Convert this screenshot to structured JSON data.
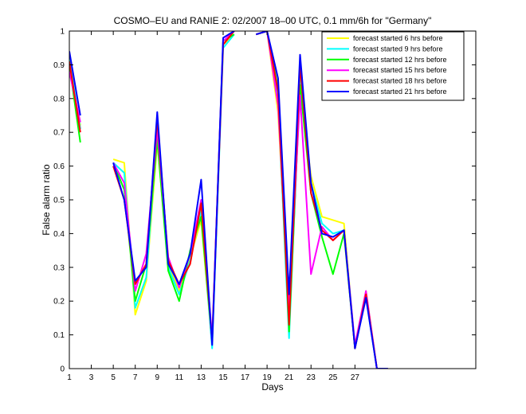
{
  "chart_data": {
    "type": "line",
    "title": "COSMO–EU and RANIE 2: 02/2007 18–00 UTC, 0.1 mm/6h for \"Germany\"",
    "xlabel": "Days",
    "ylabel": "False alarm ratio",
    "xlim": [
      1,
      38
    ],
    "ylim": [
      0,
      1
    ],
    "xticks": [
      1,
      3,
      5,
      7,
      9,
      11,
      13,
      15,
      17,
      19,
      21,
      23,
      25,
      27
    ],
    "yticks": [
      0,
      0.1,
      0.2,
      0.3,
      0.4,
      0.5,
      0.6,
      0.7,
      0.8,
      0.9,
      1
    ],
    "ytick_labels": [
      "0",
      "0.1",
      "0.2",
      "0.3",
      "0.4",
      "0.5",
      "0.6",
      "0.7",
      "0.8",
      "0.9",
      "1"
    ],
    "legend_position": "top-right",
    "grid": false,
    "x": [
      1,
      2,
      3,
      4,
      5,
      6,
      7,
      8,
      9,
      10,
      11,
      12,
      13,
      14,
      15,
      16,
      17,
      18,
      19,
      20,
      21,
      22,
      23,
      24,
      25,
      26,
      27,
      28,
      29,
      30
    ],
    "series": [
      {
        "name": "forecast started 6 hrs before",
        "color": "#ffff00",
        "values": [
          0.89,
          0.72,
          null,
          null,
          0.62,
          0.61,
          0.16,
          0.26,
          0.67,
          0.31,
          0.23,
          0.33,
          0.44,
          0.07,
          0.96,
          0.99,
          null,
          0.99,
          1.0,
          0.76,
          0.16,
          0.83,
          0.57,
          0.45,
          0.44,
          0.43,
          0.06,
          0.23,
          0.0,
          0.0
        ]
      },
      {
        "name": "forecast started 9 hrs before",
        "color": "#00ffff",
        "values": [
          0.92,
          0.71,
          null,
          null,
          0.61,
          0.58,
          0.18,
          0.27,
          0.7,
          0.3,
          0.22,
          0.32,
          0.47,
          0.06,
          0.95,
          0.99,
          null,
          0.99,
          1.0,
          0.8,
          0.09,
          0.86,
          0.55,
          0.43,
          0.4,
          0.41,
          0.07,
          0.21,
          0.0,
          0.0
        ]
      },
      {
        "name": "forecast started 12 hrs before",
        "color": "#00ff00",
        "values": [
          0.9,
          0.67,
          null,
          null,
          0.61,
          0.53,
          0.2,
          0.31,
          0.68,
          0.29,
          0.2,
          0.35,
          0.45,
          0.08,
          0.97,
          0.99,
          null,
          0.99,
          1.0,
          0.83,
          0.11,
          0.84,
          0.52,
          0.39,
          0.28,
          0.4,
          0.06,
          0.22,
          0.0,
          0.0
        ]
      },
      {
        "name": "forecast started 15 hrs before",
        "color": "#ff00ff",
        "values": [
          0.88,
          0.73,
          null,
          null,
          0.61,
          0.55,
          0.23,
          0.34,
          0.71,
          0.33,
          0.24,
          0.34,
          0.5,
          0.09,
          0.97,
          1.0,
          null,
          0.99,
          1.0,
          0.78,
          0.18,
          0.81,
          0.28,
          0.42,
          0.38,
          0.41,
          0.07,
          0.23,
          0.0,
          0.0
        ]
      },
      {
        "name": "forecast started 18 hrs before",
        "color": "#ff0000",
        "values": [
          0.91,
          0.7,
          null,
          null,
          0.6,
          0.5,
          0.25,
          0.31,
          0.74,
          0.32,
          0.25,
          0.31,
          0.49,
          0.08,
          0.96,
          1.0,
          null,
          0.99,
          1.0,
          0.82,
          0.13,
          0.9,
          0.52,
          0.41,
          0.38,
          0.41,
          0.06,
          0.22,
          0.0,
          0.0
        ]
      },
      {
        "name": "forecast started 21 hrs before",
        "color": "#0000ff",
        "values": [
          0.94,
          0.75,
          null,
          null,
          0.61,
          0.5,
          0.26,
          0.3,
          0.76,
          0.31,
          0.25,
          0.34,
          0.56,
          0.07,
          0.98,
          1.0,
          null,
          0.99,
          1.0,
          0.86,
          0.22,
          0.93,
          0.55,
          0.4,
          0.39,
          0.41,
          0.06,
          0.21,
          0.0,
          0.0
        ]
      }
    ]
  }
}
